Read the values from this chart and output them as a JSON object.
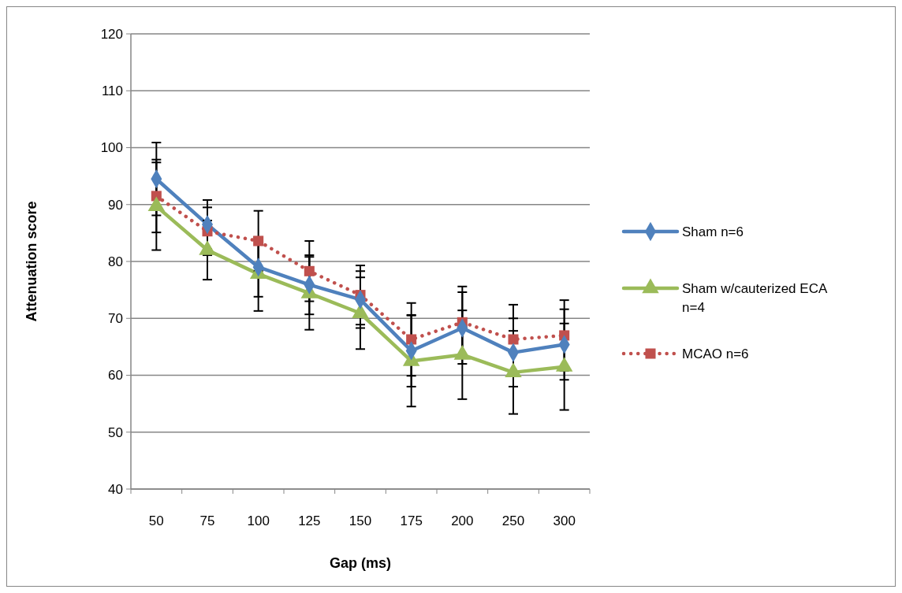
{
  "chart_data": {
    "type": "line",
    "xlabel": "Gap (ms)",
    "ylabel": "Attenuation score",
    "categories": [
      "50",
      "75",
      "100",
      "125",
      "150",
      "175",
      "200",
      "250",
      "300"
    ],
    "ylim": [
      40,
      120
    ],
    "yticks": [
      40,
      50,
      60,
      70,
      80,
      90,
      100,
      110,
      120
    ],
    "grid": "y",
    "legend": "right",
    "series": [
      {
        "name": "Sham n=6",
        "color": "#4f81bd",
        "marker": "diamond",
        "line_style": "solid",
        "values": [
          94.5,
          86.5,
          79,
          75.9,
          73.3,
          64.3,
          68.3,
          64,
          65.4
        ],
        "errors": [
          6.4,
          4.3,
          5.2,
          5.2,
          5.0,
          6.3,
          6.3,
          6,
          6.2
        ]
      },
      {
        "name": "Sham w/cauterized ECA n=4",
        "color": "#9bbb59",
        "marker": "triangle",
        "line_style": "solid",
        "values": [
          89.7,
          82,
          77.8,
          74.4,
          70.9,
          62.5,
          63.6,
          60.5,
          61.5
        ],
        "errors": [
          7.7,
          5.2,
          6.5,
          6.4,
          6.3,
          8,
          7.8,
          7.3,
          7.6
        ]
      },
      {
        "name": "MCAO n=6",
        "color": "#c0504d",
        "marker": "square",
        "line_style": "dotted",
        "values": [
          91.5,
          85.3,
          83.6,
          78.3,
          74.1,
          66.3,
          69.3,
          66.3,
          67
        ],
        "errors": [
          6.4,
          4.2,
          5.3,
          5.3,
          5.2,
          6.4,
          6.3,
          6.1,
          6.2
        ]
      }
    ]
  }
}
